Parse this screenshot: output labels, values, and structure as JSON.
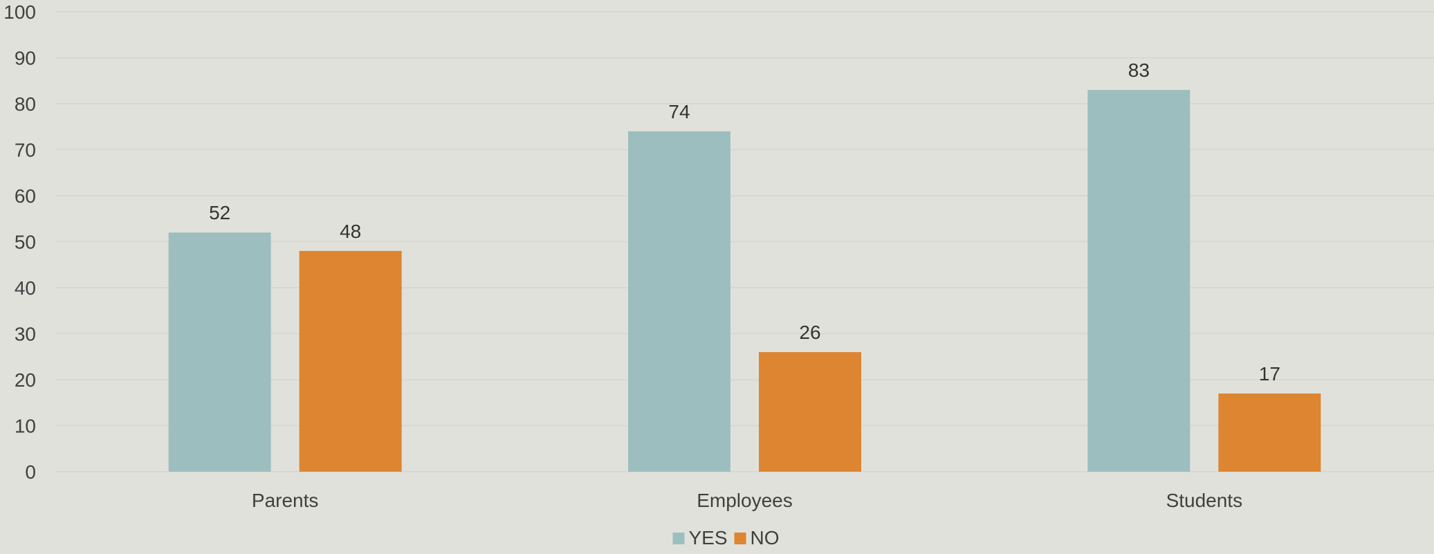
{
  "chart_data": {
    "type": "bar",
    "categories": [
      "Parents",
      "Employees",
      "Students"
    ],
    "series": [
      {
        "name": "YES",
        "values": [
          52,
          74,
          83
        ],
        "color": "#9dbebe"
      },
      {
        "name": "NO",
        "values": [
          48,
          26,
          17
        ],
        "color": "#dd8531"
      }
    ],
    "ylim": [
      0,
      100
    ],
    "yticks": [
      "0",
      "10",
      "20",
      "30",
      "40",
      "50",
      "60",
      "70",
      "80",
      "90",
      "100"
    ],
    "grid": true,
    "legend_position": "bottom",
    "data_labels": true,
    "title": "",
    "xlabel": "",
    "ylabel": ""
  },
  "colors": {
    "background": "#e1e1db",
    "gridline": "#d6d6d0",
    "text": "#404040"
  }
}
